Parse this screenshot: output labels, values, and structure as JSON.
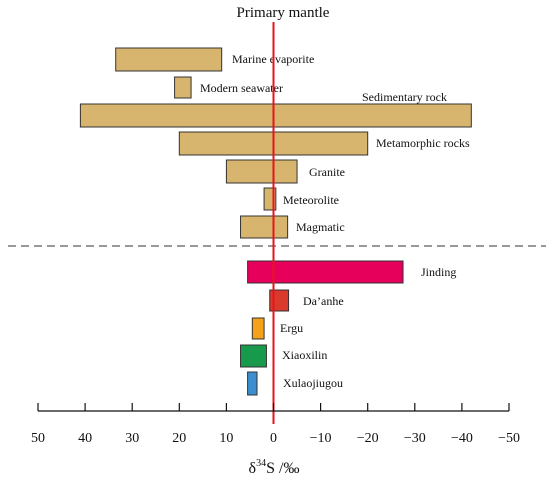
{
  "chart_data": {
    "type": "bar",
    "orientation": "horizontal-range",
    "title": "Primary mantle",
    "xlabel_prefix": "δ",
    "xlabel_sup": "34",
    "xlabel_suffix": "S /‰",
    "xlim": [
      50,
      -50
    ],
    "xticks": [
      50,
      40,
      30,
      20,
      10,
      0,
      -10,
      -20,
      -30,
      -40,
      -50
    ],
    "xtick_labels": [
      "50",
      "40",
      "30",
      "20",
      "10",
      "0",
      "−10",
      "−20",
      "−30",
      "−40",
      "−50"
    ],
    "reference_line_x": 0,
    "reference_color": "#e8141b",
    "reference_series": [
      {
        "name": "Marine evaporite",
        "min": 11,
        "max": 33.5,
        "color": "#d8b56e"
      },
      {
        "name": "Modern seawater",
        "min": 17.5,
        "max": 21,
        "color": "#d8b56e"
      },
      {
        "name": "Sedimentary rock",
        "min": -42,
        "max": 41,
        "color": "#d8b56e"
      },
      {
        "name": "Metamorphic rocks",
        "min": -20,
        "max": 20,
        "color": "#d8b56e"
      },
      {
        "name": "Granite",
        "min": -5,
        "max": 10,
        "color": "#d8b56e"
      },
      {
        "name": "Meteorolite",
        "min": -0.5,
        "max": 2,
        "color": "#d8b56e"
      },
      {
        "name": "Magmatic",
        "min": -3,
        "max": 7,
        "color": "#d8b56e"
      }
    ],
    "deposit_series": [
      {
        "name": "Jinding",
        "min": -27.5,
        "max": 5.5,
        "color": "#e6005c"
      },
      {
        "name": "Da’anhe",
        "min": -3.2,
        "max": 0.8,
        "color": "#d93a2b"
      },
      {
        "name": "Ergu",
        "min": 2,
        "max": 4.5,
        "color": "#f5a21b"
      },
      {
        "name": "Xiaoxilin",
        "min": 1.5,
        "max": 7,
        "color": "#179a4c"
      },
      {
        "name": "Xulaojiugou",
        "min": 3.5,
        "max": 5.5,
        "color": "#3b8fd0"
      }
    ],
    "divider": "dashed line separating reference reservoirs from deposits"
  }
}
